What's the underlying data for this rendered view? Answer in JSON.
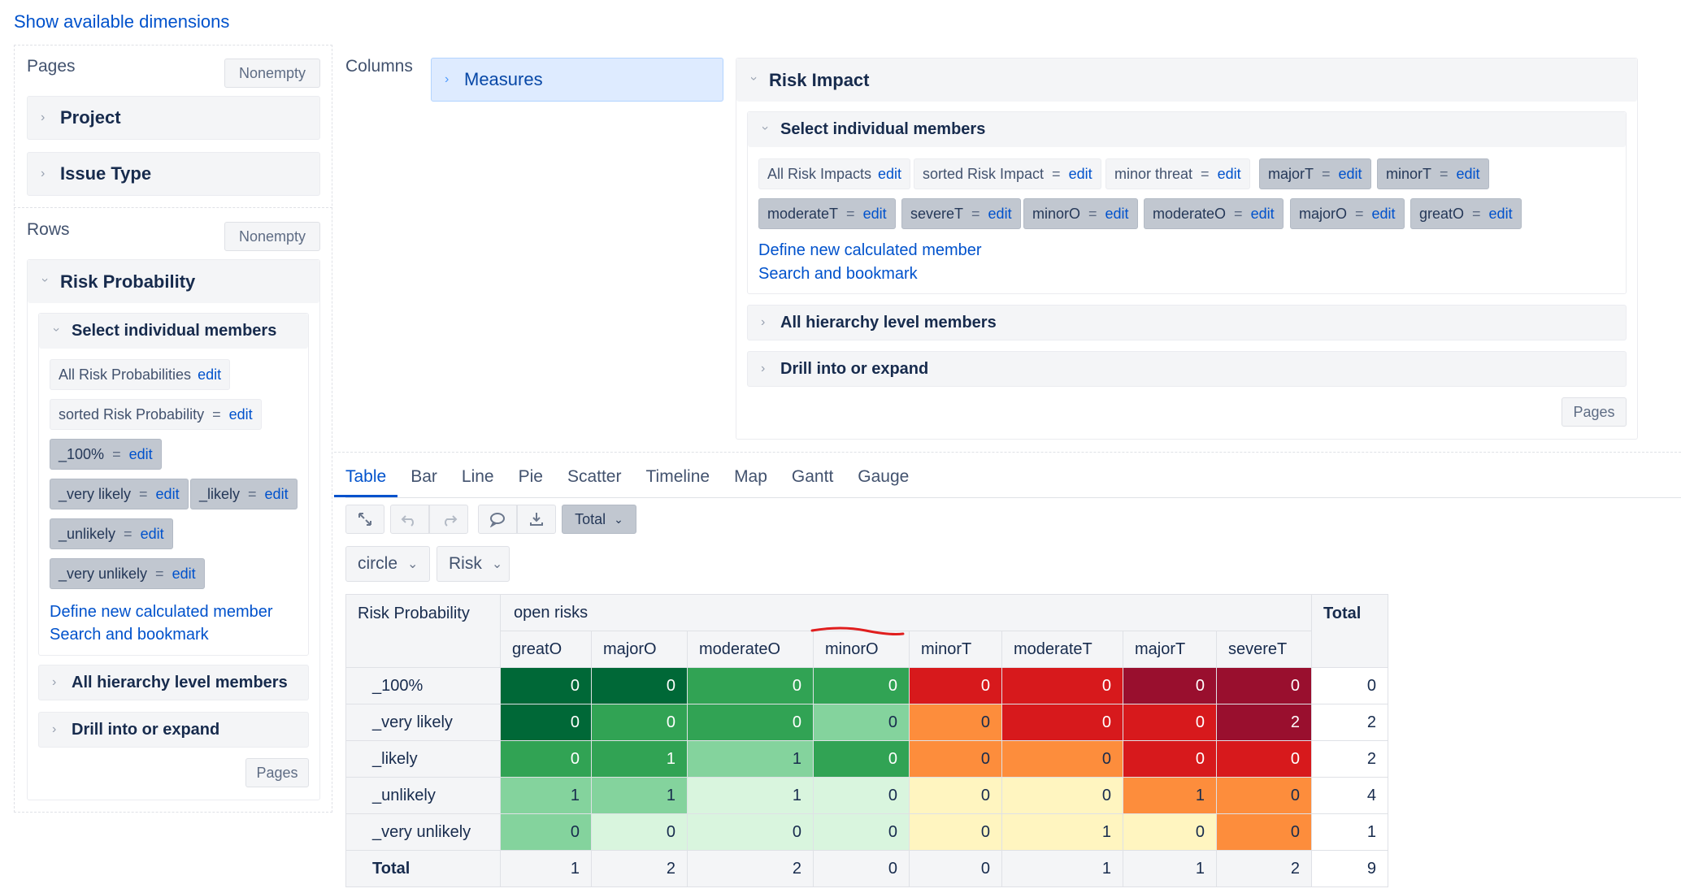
{
  "top_link": "Show available dimensions",
  "pages": {
    "label": "Pages",
    "nonempty": "Nonempty",
    "items": [
      "Project",
      "Issue Type"
    ]
  },
  "rows": {
    "label": "Rows",
    "nonempty": "Nonempty",
    "dimension": "Risk Probability",
    "select_members": "Select individual members",
    "chips": [
      {
        "name": "All Risk Probabilities",
        "edit": "edit"
      },
      {
        "name": "sorted Risk Probability",
        "eq": "=",
        "edit": "edit"
      },
      {
        "name": "_100%",
        "eq": "=",
        "edit": "edit"
      },
      {
        "name": "_very likely",
        "eq": "=",
        "edit": "edit"
      },
      {
        "name": "_likely",
        "eq": "=",
        "edit": "edit"
      },
      {
        "name": "_unlikely",
        "eq": "=",
        "edit": "edit"
      },
      {
        "name": "_very unlikely",
        "eq": "=",
        "edit": "edit"
      }
    ],
    "define_calc": "Define new calculated member",
    "search_bookmark": "Search and bookmark",
    "all_hierarchy": "All hierarchy level members",
    "drill": "Drill into or expand",
    "pages_btn": "Pages"
  },
  "columns": {
    "label": "Columns",
    "measures": "Measures",
    "dimension": "Risk Impact",
    "select_members": "Select individual members",
    "chips": [
      {
        "name": "All Risk Impacts",
        "edit": "edit"
      },
      {
        "name": "sorted Risk Impact",
        "eq": "=",
        "edit": "edit"
      },
      {
        "name": "minor threat",
        "eq": "=",
        "edit": "edit"
      },
      {
        "name": "majorT",
        "eq": "=",
        "edit": "edit"
      },
      {
        "name": "minorT",
        "eq": "=",
        "edit": "edit"
      },
      {
        "name": "moderateT",
        "eq": "=",
        "edit": "edit"
      },
      {
        "name": "severeT",
        "eq": "=",
        "edit": "edit"
      },
      {
        "name": "minorO",
        "eq": "=",
        "edit": "edit"
      },
      {
        "name": "moderateO",
        "eq": "=",
        "edit": "edit"
      },
      {
        "name": "majorO",
        "eq": "=",
        "edit": "edit"
      },
      {
        "name": "greatO",
        "eq": "=",
        "edit": "edit"
      }
    ],
    "define_calc": "Define new calculated member",
    "search_bookmark": "Search and bookmark",
    "all_hierarchy": "All hierarchy level members",
    "drill": "Drill into or expand",
    "pages_btn": "Pages"
  },
  "tabs": [
    "Table",
    "Bar",
    "Line",
    "Pie",
    "Scatter",
    "Timeline",
    "Map",
    "Gantt",
    "Gauge"
  ],
  "toolbar": {
    "total_label": "Total"
  },
  "filters": [
    {
      "label": "circle"
    },
    {
      "label": "Risk"
    }
  ],
  "table": {
    "corner": "Risk Probability",
    "group": "open risks",
    "total_header": "Total",
    "columns": [
      "greatO",
      "majorO",
      "moderateO",
      "minorO",
      "minorT",
      "moderateT",
      "majorT",
      "severeT"
    ],
    "rows": [
      {
        "label": "_100%",
        "values": [
          0,
          0,
          0,
          0,
          0,
          0,
          0,
          0
        ],
        "total": 0
      },
      {
        "label": "_very likely",
        "values": [
          0,
          0,
          0,
          0,
          0,
          0,
          0,
          2
        ],
        "total": 2
      },
      {
        "label": "_likely",
        "values": [
          0,
          1,
          1,
          0,
          0,
          0,
          0,
          0
        ],
        "total": 2
      },
      {
        "label": "_unlikely",
        "values": [
          1,
          1,
          1,
          0,
          0,
          0,
          1,
          0
        ],
        "total": 4
      },
      {
        "label": "_very unlikely",
        "values": [
          0,
          0,
          0,
          0,
          0,
          1,
          0,
          0
        ],
        "total": 1
      }
    ],
    "total_row": {
      "label": "Total",
      "values": [
        1,
        2,
        2,
        0,
        0,
        1,
        1,
        2
      ],
      "total": 9
    },
    "cell_colors": [
      [
        "#006837",
        "#006837",
        "#31a354",
        "#31a354",
        "#d7191c",
        "#d7191c",
        "#990f2e",
        "#990f2e"
      ],
      [
        "#006837",
        "#31a354",
        "#31a354",
        "#84d39d",
        "#fd8d3c",
        "#d7191c",
        "#d7191c",
        "#990f2e"
      ],
      [
        "#31a354",
        "#31a354",
        "#84d39d",
        "#31a354",
        "#fd8d3c",
        "#fd8d3c",
        "#d7191c",
        "#d7191c"
      ],
      [
        "#84d39d",
        "#84d39d",
        "#d9f5de",
        "#d9f5de",
        "#fff5c0",
        "#fff5c0",
        "#fd8d3c",
        "#fd8d3c"
      ],
      [
        "#84d39d",
        "#d9f5de",
        "#d9f5de",
        "#d9f5de",
        "#fff5c0",
        "#fff5c0",
        "#fff5c0",
        "#fd8d3c"
      ]
    ],
    "annotation_color": "#e01e1e"
  }
}
